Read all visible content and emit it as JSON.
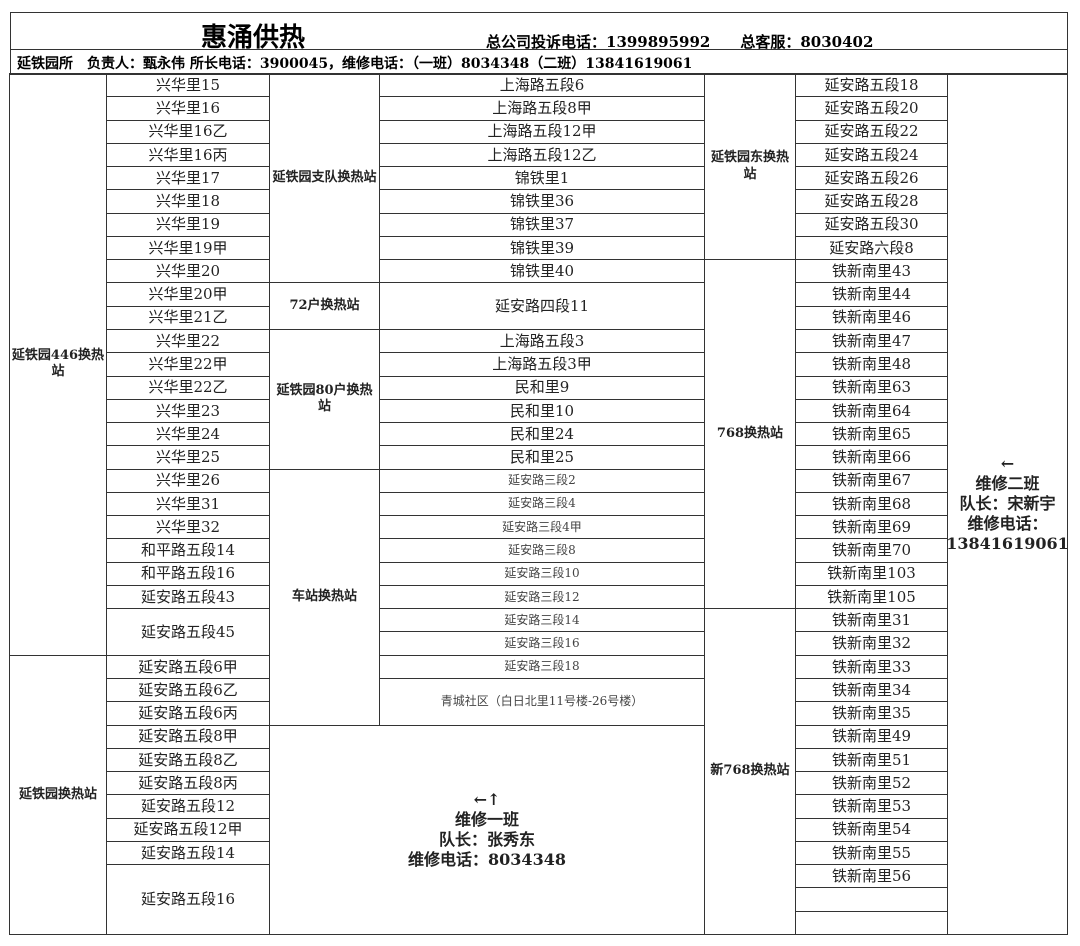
{
  "header": {
    "title": "惠涌供热",
    "hotline": "总公司投诉电话：1399895992　　总客服：8030402",
    "info": "延铁园所　负责人：甄永伟 所长电话：3900045，维修电话：（一班）8034348（二班）13841619061"
  },
  "stations": {
    "s446": "延铁园446换热站",
    "syty": "延铁园换热站",
    "zhidui": "延铁园支队换热站",
    "h72": "72户换热站",
    "h80": "延铁园80户换热站",
    "chezhan": "车站换热站",
    "dong": "延铁园东换热站",
    "s768": "768换热站",
    "new768": "新768换热站"
  },
  "col2": [
    "兴华里15",
    "兴华里16",
    "兴华里16乙",
    "兴华里16丙",
    "兴华里17",
    "兴华里18",
    "兴华里19",
    "兴华里19甲",
    "兴华里20",
    "兴华里20甲",
    "兴华里21乙",
    "兴华里22",
    "兴华里22甲",
    "兴华里22乙",
    "兴华里23",
    "兴华里24",
    "兴华里25",
    "兴华里26",
    "兴华里31",
    "兴华里32",
    "和平路五段14",
    "和平路五段16",
    "延安路五段43",
    "延安路五段45",
    "延安路五段6甲",
    "延安路五段6乙",
    "延安路五段6丙",
    "延安路五段8甲",
    "延安路五段8乙",
    "延安路五段8丙",
    "延安路五段12",
    "延安路五段12甲",
    "延安路五段14",
    "延安路五段16"
  ],
  "col4": [
    "上海路五段6",
    "上海路五段8甲",
    "上海路五段12甲",
    "上海路五段12乙",
    "锦铁里1",
    "锦铁里36",
    "锦铁里37",
    "锦铁里39",
    "锦铁里40",
    "延安路四段11",
    "上海路五段3",
    "上海路五段3甲",
    "民和里9",
    "民和里10",
    "民和里24",
    "民和里25",
    "延安路三段2",
    "延安路三段4",
    "延安路三段4甲",
    "延安路三段8",
    "延安路三段10",
    "延安路三段12",
    "延安路三段14",
    "延安路三段16",
    "延安路三段18",
    "青城社区（白日北里11号楼-26号楼）"
  ],
  "col6": [
    "延安路五段18",
    "延安路五段20",
    "延安路五段22",
    "延安路五段24",
    "延安路五段26",
    "延安路五段28",
    "延安路五段30",
    "延安路六段8",
    "铁新南里43",
    "铁新南里44",
    "铁新南里46",
    "铁新南里47",
    "铁新南里48",
    "铁新南里63",
    "铁新南里64",
    "铁新南里65",
    "铁新南里66",
    "铁新南里67",
    "铁新南里68",
    "铁新南里69",
    "铁新南里70",
    "铁新南里103",
    "铁新南里105",
    "铁新南里31",
    "铁新南里32",
    "铁新南里33",
    "铁新南里34",
    "铁新南里35",
    "铁新南里49",
    "铁新南里51",
    "铁新南里52",
    "铁新南里53",
    "铁新南里54",
    "铁新南里55",
    "铁新南里56",
    "",
    ""
  ],
  "team1": {
    "arrow": "←↑",
    "name": "维修一班",
    "leader": "队长：张秀东",
    "phone": "维修电话：8034348"
  },
  "team2": {
    "arrow": "←",
    "name": "维修二班",
    "leader": "队长：宋新宇",
    "phone_label": "维修电话：",
    "phone": "13841619061"
  }
}
